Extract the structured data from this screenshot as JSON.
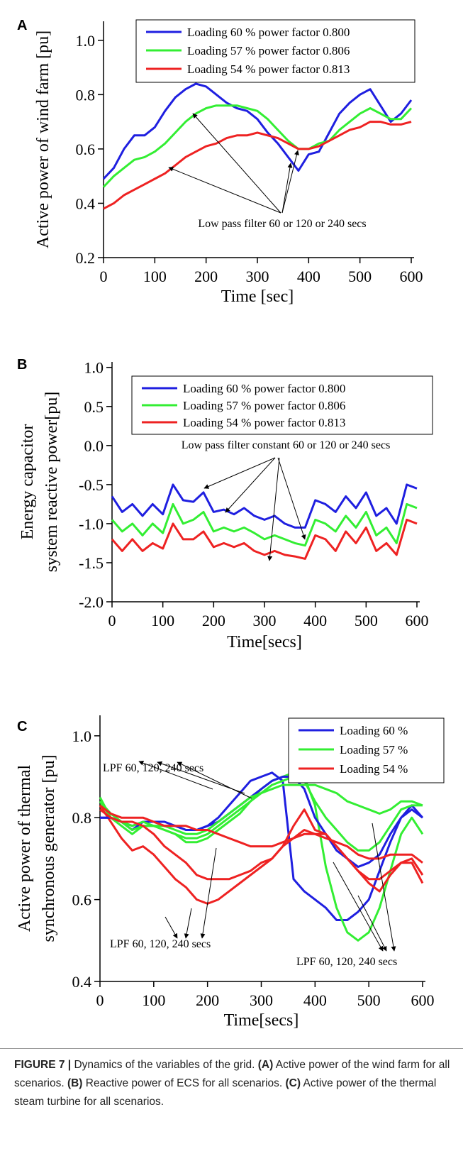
{
  "chart_data": [
    {
      "type": "line",
      "label": "A",
      "xlabel": "Time [sec]",
      "ylabel": [
        "Active power of wind farm [pu]"
      ],
      "x": [
        0,
        20,
        40,
        60,
        80,
        100,
        120,
        140,
        160,
        180,
        200,
        220,
        240,
        260,
        280,
        300,
        320,
        340,
        360,
        380,
        400,
        420,
        440,
        460,
        480,
        500,
        520,
        540,
        560,
        580,
        600
      ],
      "xlim": [
        0,
        600
      ],
      "xticks": [
        0,
        100,
        200,
        300,
        400,
        500,
        600
      ],
      "ylim": [
        0.2,
        1.07
      ],
      "yticks": [
        0.2,
        0.4,
        0.6,
        0.8,
        {
          "value": 1,
          "label": "1.0"
        }
      ],
      "legend": "top-right",
      "series": [
        {
          "name": "Loading 60 % power factor 0.800",
          "color": "#1f1fe0",
          "values": [
            0.49,
            0.53,
            0.6,
            0.65,
            0.65,
            0.68,
            0.74,
            0.79,
            0.82,
            0.84,
            0.83,
            0.8,
            0.77,
            0.75,
            0.74,
            0.71,
            0.66,
            0.62,
            0.57,
            0.52,
            0.58,
            0.59,
            0.66,
            0.73,
            0.77,
            0.8,
            0.82,
            0.76,
            0.7,
            0.73,
            0.78
          ]
        },
        {
          "name": "Loading 57 % power factor 0.806",
          "color": "#33ee33",
          "values": [
            0.46,
            0.5,
            0.53,
            0.56,
            0.57,
            0.59,
            0.62,
            0.66,
            0.7,
            0.73,
            0.75,
            0.76,
            0.76,
            0.76,
            0.75,
            0.74,
            0.71,
            0.67,
            0.63,
            0.6,
            0.6,
            0.62,
            0.63,
            0.67,
            0.7,
            0.73,
            0.75,
            0.73,
            0.71,
            0.71,
            0.75
          ]
        },
        {
          "name": "Loading 54 % power factor 0.813",
          "color": "#ee2222",
          "values": [
            0.38,
            0.4,
            0.43,
            0.45,
            0.47,
            0.49,
            0.51,
            0.54,
            0.57,
            0.59,
            0.61,
            0.62,
            0.64,
            0.65,
            0.65,
            0.66,
            0.65,
            0.64,
            0.62,
            0.6,
            0.6,
            0.61,
            0.63,
            0.65,
            0.67,
            0.68,
            0.7,
            0.7,
            0.69,
            0.69,
            0.7
          ]
        }
      ],
      "annotations": [
        "Low pass filter 60 or 120 or 240 secs"
      ]
    },
    {
      "type": "line",
      "label": "B",
      "xlabel": "Time[secs]",
      "ylabel": [
        "Energy capacitor",
        "system reactive power[pu]"
      ],
      "x": [
        0,
        20,
        40,
        60,
        80,
        100,
        120,
        140,
        160,
        180,
        200,
        220,
        240,
        260,
        280,
        300,
        320,
        340,
        360,
        380,
        400,
        420,
        440,
        460,
        480,
        500,
        520,
        540,
        560,
        580,
        600
      ],
      "xlim": [
        0,
        600
      ],
      "xticks": [
        0,
        100,
        200,
        300,
        400,
        500,
        600
      ],
      "ylim": [
        -2,
        1.07
      ],
      "yticks": [
        {
          "value": -2,
          "label": "-2.0"
        },
        -1.5,
        {
          "value": -1,
          "label": "-1.0"
        },
        -0.5,
        {
          "value": 0,
          "label": "0.0"
        },
        0.5,
        {
          "value": 1,
          "label": "1.0"
        }
      ],
      "legend": "top-right",
      "series": [
        {
          "name": "Loading 60 % power factor 0.800",
          "color": "#1f1fe0",
          "values": [
            -0.65,
            -0.85,
            -0.75,
            -0.9,
            -0.75,
            -0.88,
            -0.5,
            -0.7,
            -0.72,
            -0.6,
            -0.85,
            -0.82,
            -0.88,
            -0.8,
            -0.9,
            -0.95,
            -0.9,
            -1.0,
            -1.05,
            -1.05,
            -0.7,
            -0.75,
            -0.85,
            -0.65,
            -0.8,
            -0.6,
            -0.9,
            -0.8,
            -1.0,
            -0.5,
            -0.55
          ]
        },
        {
          "name": "Loading 57 % power factor 0.806",
          "color": "#33ee33",
          "values": [
            -0.95,
            -1.1,
            -1.0,
            -1.15,
            -1.0,
            -1.12,
            -0.75,
            -1.0,
            -0.95,
            -0.85,
            -1.1,
            -1.05,
            -1.1,
            -1.05,
            -1.12,
            -1.2,
            -1.15,
            -1.2,
            -1.25,
            -1.28,
            -0.95,
            -1.0,
            -1.1,
            -0.9,
            -1.05,
            -0.85,
            -1.15,
            -1.05,
            -1.25,
            -0.75,
            -0.8
          ]
        },
        {
          "name": "Loading 54 % power factor 0.813",
          "color": "#ee2222",
          "values": [
            -1.2,
            -1.35,
            -1.2,
            -1.35,
            -1.25,
            -1.32,
            -1.0,
            -1.2,
            -1.2,
            -1.1,
            -1.3,
            -1.25,
            -1.3,
            -1.25,
            -1.35,
            -1.4,
            -1.35,
            -1.4,
            -1.42,
            -1.45,
            -1.15,
            -1.2,
            -1.35,
            -1.1,
            -1.25,
            -1.05,
            -1.35,
            -1.25,
            -1.4,
            -0.95,
            -1.0
          ]
        }
      ],
      "annotations": [
        "Low pass filter constant 60 or 120 or 240 secs"
      ]
    },
    {
      "type": "line",
      "label": "C",
      "xlabel": "Time[secs]",
      "ylabel": [
        "Active power of thermal",
        "synchronous generator [pu]"
      ],
      "x": [
        0,
        20,
        40,
        60,
        80,
        100,
        120,
        140,
        160,
        180,
        200,
        220,
        240,
        260,
        280,
        300,
        320,
        340,
        360,
        380,
        400,
        420,
        440,
        460,
        480,
        500,
        520,
        540,
        560,
        580,
        600
      ],
      "xlim": [
        0,
        600
      ],
      "xticks": [
        0,
        100,
        200,
        300,
        400,
        500,
        600
      ],
      "ylim": [
        0.4,
        1.05
      ],
      "yticks": [
        0.4,
        0.6,
        0.8,
        {
          "value": 1,
          "label": "1.0"
        }
      ],
      "legend": "top-right",
      "series": [
        {
          "name": "Loading 60 %",
          "color": "#1f1fe0",
          "values": [
            0.8,
            0.8,
            0.79,
            0.77,
            0.79,
            0.79,
            0.79,
            0.78,
            0.77,
            0.77,
            0.78,
            0.8,
            0.83,
            0.86,
            0.89,
            0.9,
            0.91,
            0.89,
            0.65,
            0.62,
            0.6,
            0.58,
            0.55,
            0.55,
            0.57,
            0.6,
            0.67,
            0.74,
            0.8,
            0.83,
            0.8
          ]
        },
        {
          "name": "Loading 57 %",
          "color": "#33ee33",
          "values": [
            0.85,
            0.8,
            0.78,
            0.76,
            0.78,
            0.78,
            0.77,
            0.76,
            0.74,
            0.74,
            0.75,
            0.77,
            0.79,
            0.81,
            0.84,
            0.87,
            0.89,
            0.9,
            0.91,
            0.9,
            0.83,
            0.68,
            0.58,
            0.52,
            0.5,
            0.52,
            0.58,
            0.67,
            0.76,
            0.8,
            0.76
          ]
        },
        {
          "name": "Loading 54 %",
          "color": "#ee2222",
          "values": [
            0.83,
            0.79,
            0.75,
            0.72,
            0.73,
            0.71,
            0.68,
            0.65,
            0.63,
            0.6,
            0.59,
            0.6,
            0.62,
            0.64,
            0.66,
            0.68,
            0.7,
            0.73,
            0.75,
            0.77,
            0.76,
            0.76,
            0.73,
            0.7,
            0.67,
            0.65,
            0.65,
            0.67,
            0.69,
            0.69,
            0.64
          ]
        },
        {
          "color": "#1f1fe0",
          "values": [
            0.8,
            0.8,
            0.79,
            0.78,
            0.79,
            0.79,
            0.78,
            0.78,
            0.77,
            0.77,
            0.78,
            0.79,
            0.81,
            0.83,
            0.85,
            0.87,
            0.89,
            0.9,
            0.9,
            0.87,
            0.8,
            0.76,
            0.72,
            0.7,
            0.68,
            0.69,
            0.71,
            0.76,
            0.8,
            0.82,
            0.8
          ]
        },
        {
          "color": "#33ee33",
          "values": [
            0.84,
            0.8,
            0.79,
            0.77,
            0.78,
            0.78,
            0.77,
            0.76,
            0.75,
            0.75,
            0.76,
            0.78,
            0.8,
            0.82,
            0.84,
            0.86,
            0.88,
            0.89,
            0.9,
            0.89,
            0.84,
            0.8,
            0.77,
            0.74,
            0.72,
            0.72,
            0.74,
            0.78,
            0.82,
            0.83,
            0.83
          ]
        },
        {
          "color": "#33ee33",
          "values": [
            0.84,
            0.81,
            0.79,
            0.78,
            0.79,
            0.78,
            0.78,
            0.77,
            0.76,
            0.76,
            0.77,
            0.79,
            0.81,
            0.83,
            0.85,
            0.86,
            0.87,
            0.88,
            0.88,
            0.88,
            0.88,
            0.87,
            0.86,
            0.84,
            0.83,
            0.82,
            0.81,
            0.82,
            0.84,
            0.84,
            0.83
          ]
        },
        {
          "color": "#ee2222",
          "values": [
            0.82,
            0.8,
            0.79,
            0.79,
            0.78,
            0.76,
            0.73,
            0.71,
            0.69,
            0.66,
            0.65,
            0.65,
            0.65,
            0.66,
            0.67,
            0.69,
            0.7,
            0.73,
            0.78,
            0.82,
            0.77,
            0.76,
            0.73,
            0.7,
            0.67,
            0.64,
            0.62,
            0.66,
            0.69,
            0.7,
            0.66
          ]
        },
        {
          "color": "#ee2222",
          "values": [
            0.83,
            0.81,
            0.8,
            0.8,
            0.8,
            0.79,
            0.78,
            0.78,
            0.78,
            0.77,
            0.77,
            0.76,
            0.75,
            0.74,
            0.73,
            0.73,
            0.73,
            0.74,
            0.75,
            0.76,
            0.76,
            0.75,
            0.74,
            0.73,
            0.71,
            0.7,
            0.7,
            0.71,
            0.71,
            0.71,
            0.69
          ]
        }
      ],
      "annotations": [
        "LPF 60, 120, 240 secs",
        "LPF 60, 120, 240 secs",
        "LPF 60, 120, 240 secs"
      ]
    }
  ],
  "caption": [
    {
      "text": "FIGURE 7 |",
      "bold": true
    },
    {
      "text": " Dynamics of the variables of the grid. "
    },
    {
      "text": "(A)",
      "bold": true
    },
    {
      "text": " Active power of the wind farm for all scenarios. "
    },
    {
      "text": "(B)",
      "bold": true
    },
    {
      "text": " Reactive power of ECS for all scenarios. "
    },
    {
      "text": "(C)",
      "bold": true
    },
    {
      "text": " Active power of the thermal steam turbine for all scenarios."
    }
  ]
}
